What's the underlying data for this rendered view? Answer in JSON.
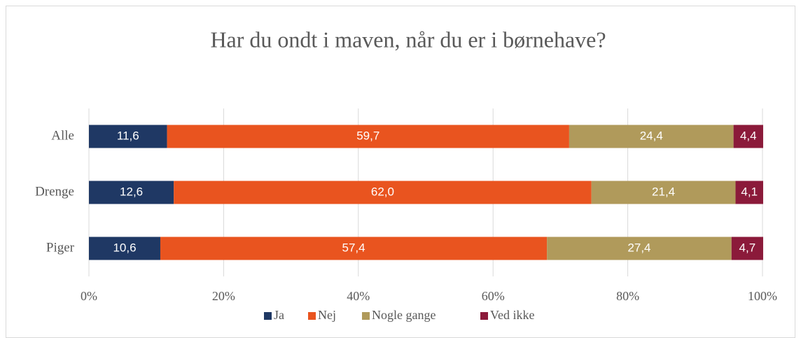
{
  "chart_data": {
    "type": "stacked-bar-horizontal",
    "title": "Har du ondt i maven, når du er i børnehave?",
    "categories": [
      "Alle",
      "Drenge",
      "Piger"
    ],
    "series": [
      {
        "name": "Ja",
        "color": "#1f3864",
        "values": [
          11.6,
          12.6,
          10.6
        ],
        "value_labels": [
          "11,6",
          "12,6",
          "10,6"
        ]
      },
      {
        "name": "Nej",
        "color": "#e9541f",
        "values": [
          59.7,
          62.0,
          57.4
        ],
        "value_labels": [
          "59,7",
          "62,0",
          "57,4"
        ]
      },
      {
        "name": "Nogle gange",
        "color": "#b09a5b",
        "values": [
          24.4,
          21.4,
          27.4
        ],
        "value_labels": [
          "24,4",
          "21,4",
          "27,4"
        ]
      },
      {
        "name": "Ved ikke",
        "color": "#8b1a3a",
        "values": [
          4.4,
          4.1,
          4.7
        ],
        "value_labels": [
          "4,4",
          "4,1",
          "4,7"
        ]
      }
    ],
    "xlim": [
      0,
      100
    ],
    "xticks": [
      {
        "value": 0,
        "label": "0%"
      },
      {
        "value": 20,
        "label": "20%"
      },
      {
        "value": 40,
        "label": "40%"
      },
      {
        "value": 60,
        "label": "60%"
      },
      {
        "value": 80,
        "label": "80%"
      },
      {
        "value": 100,
        "label": "100%"
      }
    ],
    "grid": true,
    "legend": "bottom"
  }
}
